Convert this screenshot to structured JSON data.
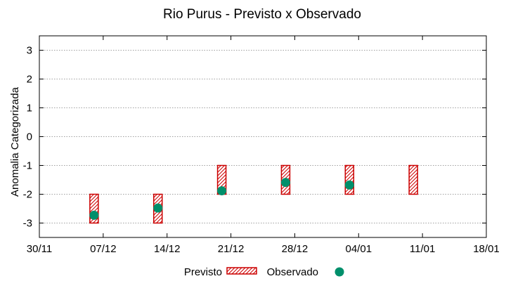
{
  "chart_data": {
    "type": "scatter",
    "title": "Rio Purus - Previsto x Observado",
    "xlabel": "",
    "ylabel": "Anomalia Categorizada",
    "x_ticks": [
      "30/11",
      "07/12",
      "14/12",
      "21/12",
      "28/12",
      "04/01",
      "11/01",
      "18/01"
    ],
    "y_ticks": [
      "3",
      "2",
      "1",
      "0",
      "-1",
      "-2",
      "-3"
    ],
    "ylim": [
      -3.5,
      3.5
    ],
    "grid": "horizontal dotted",
    "legend_position": "bottom",
    "series": [
      {
        "name": "Previsto",
        "kind": "range-box",
        "color": "#cc0000",
        "points": [
          {
            "x": "07/12",
            "low": -3,
            "high": -2
          },
          {
            "x": "14/12",
            "low": -3,
            "high": -2
          },
          {
            "x": "21/12",
            "low": -2,
            "high": -1
          },
          {
            "x": "28/12",
            "low": -2,
            "high": -1
          },
          {
            "x": "04/01",
            "low": -2,
            "high": -1
          },
          {
            "x": "11/01",
            "low": -2,
            "high": -1
          }
        ]
      },
      {
        "name": "Observado",
        "kind": "point",
        "color": "#008f6b",
        "points": [
          {
            "x": "07/12",
            "y": -2.73
          },
          {
            "x": "14/12",
            "y": -2.48
          },
          {
            "x": "21/12",
            "y": -1.88
          },
          {
            "x": "28/12",
            "y": -1.59
          },
          {
            "x": "04/01",
            "y": -1.68
          }
        ]
      }
    ]
  }
}
